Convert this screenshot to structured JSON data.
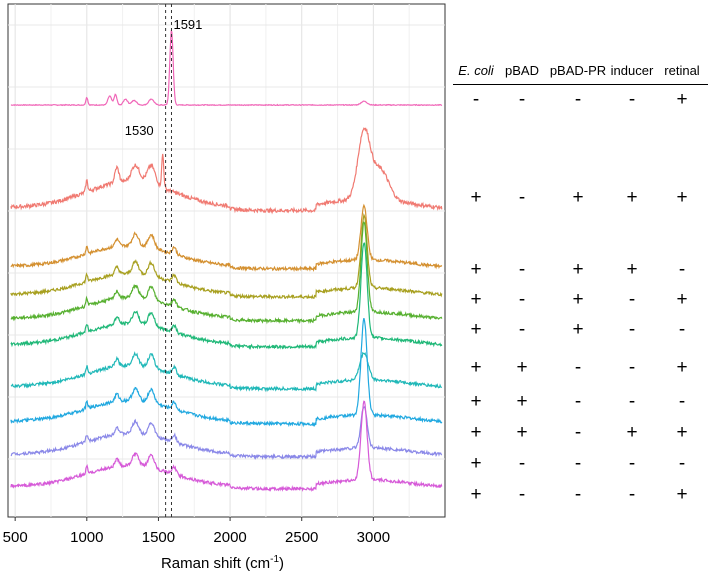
{
  "chart_data": {
    "type": "line",
    "xlabel": "Raman shift (cm",
    "xlabel_sup": "-1",
    "xlabel_suffix": ")",
    "xlim": [
      450,
      3500
    ],
    "xticks": [
      500,
      1000,
      1500,
      2000,
      2500,
      3000
    ],
    "grid": true,
    "reference_lines": [
      1550,
      1591
    ],
    "annotations": [
      {
        "text": "1591",
        "x": 1591
      },
      {
        "text": "1530",
        "x": 1530
      }
    ],
    "series": [
      {
        "color": "#f067b8",
        "offset": 0,
        "peaks": [
          [
            1591,
            1.0,
            16
          ],
          [
            1000,
            0.1,
            10
          ],
          [
            1160,
            0.12,
            18
          ],
          [
            1200,
            0.14,
            14
          ],
          [
            1270,
            0.08,
            20
          ],
          [
            1330,
            0.06,
            25
          ],
          [
            1450,
            0.08,
            25
          ],
          [
            2935,
            0.05,
            30
          ]
        ]
      },
      {
        "color": "#f07a72",
        "offset": 1,
        "peaks": [
          [
            1000,
            0.15,
            10
          ],
          [
            1210,
            0.2,
            20
          ],
          [
            1340,
            0.22,
            40
          ],
          [
            1450,
            0.25,
            40
          ],
          [
            1530,
            0.45,
            10
          ],
          [
            2935,
            0.9,
            60
          ],
          [
            3050,
            0.4,
            80
          ]
        ]
      },
      {
        "color": "#d49030",
        "offset": 2,
        "peaks": [
          [
            1000,
            0.12,
            10
          ],
          [
            1210,
            0.12,
            20
          ],
          [
            1340,
            0.2,
            30
          ],
          [
            1450,
            0.22,
            30
          ],
          [
            1610,
            0.12,
            20
          ],
          [
            2935,
            0.9,
            30
          ]
        ]
      },
      {
        "color": "#a8a020",
        "offset": 3,
        "peaks": [
          [
            1000,
            0.12,
            10
          ],
          [
            1210,
            0.12,
            20
          ],
          [
            1340,
            0.2,
            30
          ],
          [
            1450,
            0.22,
            30
          ],
          [
            1610,
            0.12,
            20
          ],
          [
            2935,
            1.2,
            30
          ]
        ]
      },
      {
        "color": "#57b030",
        "offset": 4,
        "peaks": [
          [
            1000,
            0.12,
            10
          ],
          [
            1210,
            0.12,
            20
          ],
          [
            1340,
            0.2,
            30
          ],
          [
            1450,
            0.22,
            30
          ],
          [
            1610,
            0.12,
            20
          ],
          [
            2935,
            1.5,
            30
          ]
        ]
      },
      {
        "color": "#20b878",
        "offset": 5,
        "peaks": [
          [
            1000,
            0.12,
            10
          ],
          [
            1210,
            0.12,
            20
          ],
          [
            1340,
            0.2,
            30
          ],
          [
            1450,
            0.22,
            30
          ],
          [
            1610,
            0.12,
            20
          ],
          [
            2935,
            1.6,
            30
          ]
        ]
      },
      {
        "color": "#20b8b8",
        "offset": 6,
        "peaks": [
          [
            1000,
            0.12,
            10
          ],
          [
            1210,
            0.12,
            20
          ],
          [
            1340,
            0.2,
            30
          ],
          [
            1450,
            0.22,
            30
          ],
          [
            1610,
            0.12,
            20
          ],
          [
            2935,
            0.45,
            40
          ]
        ]
      },
      {
        "color": "#20a8e0",
        "offset": 7,
        "peaks": [
          [
            1000,
            0.12,
            10
          ],
          [
            1210,
            0.12,
            20
          ],
          [
            1340,
            0.2,
            30
          ],
          [
            1450,
            0.22,
            30
          ],
          [
            1610,
            0.12,
            20
          ],
          [
            2935,
            1.6,
            30
          ]
        ]
      },
      {
        "color": "#8a88e8",
        "offset": 8,
        "peaks": [
          [
            1000,
            0.12,
            10
          ],
          [
            1210,
            0.12,
            20
          ],
          [
            1340,
            0.2,
            30
          ],
          [
            1450,
            0.22,
            30
          ],
          [
            1610,
            0.12,
            20
          ],
          [
            2935,
            0.7,
            30
          ]
        ]
      },
      {
        "color": "#d65ad8",
        "offset": 9,
        "peaks": [
          [
            1000,
            0.12,
            10
          ],
          [
            1210,
            0.12,
            20
          ],
          [
            1340,
            0.2,
            30
          ],
          [
            1450,
            0.22,
            30
          ],
          [
            1610,
            0.12,
            20
          ],
          [
            2935,
            1.3,
            30
          ]
        ]
      }
    ]
  },
  "table": {
    "headers": [
      "E. coli",
      "pBAD",
      "pBAD-PR",
      "inducer",
      "retinal"
    ],
    "rows": [
      [
        "-",
        "-",
        "-",
        "-",
        "+"
      ],
      [
        "+",
        "-",
        "+",
        "+",
        "+"
      ],
      [
        "+",
        "-",
        "+",
        "+",
        "-"
      ],
      [
        "+",
        "-",
        "+",
        "-",
        "+"
      ],
      [
        "+",
        "-",
        "+",
        "-",
        "-"
      ],
      [
        "+",
        "+",
        "-",
        "-",
        "+"
      ],
      [
        "+",
        "+",
        "-",
        "-",
        "-"
      ],
      [
        "+",
        "+",
        "-",
        "+",
        "+"
      ],
      [
        "+",
        "-",
        "-",
        "-",
        "-"
      ],
      [
        "+",
        "-",
        "-",
        "-",
        "+"
      ]
    ]
  }
}
